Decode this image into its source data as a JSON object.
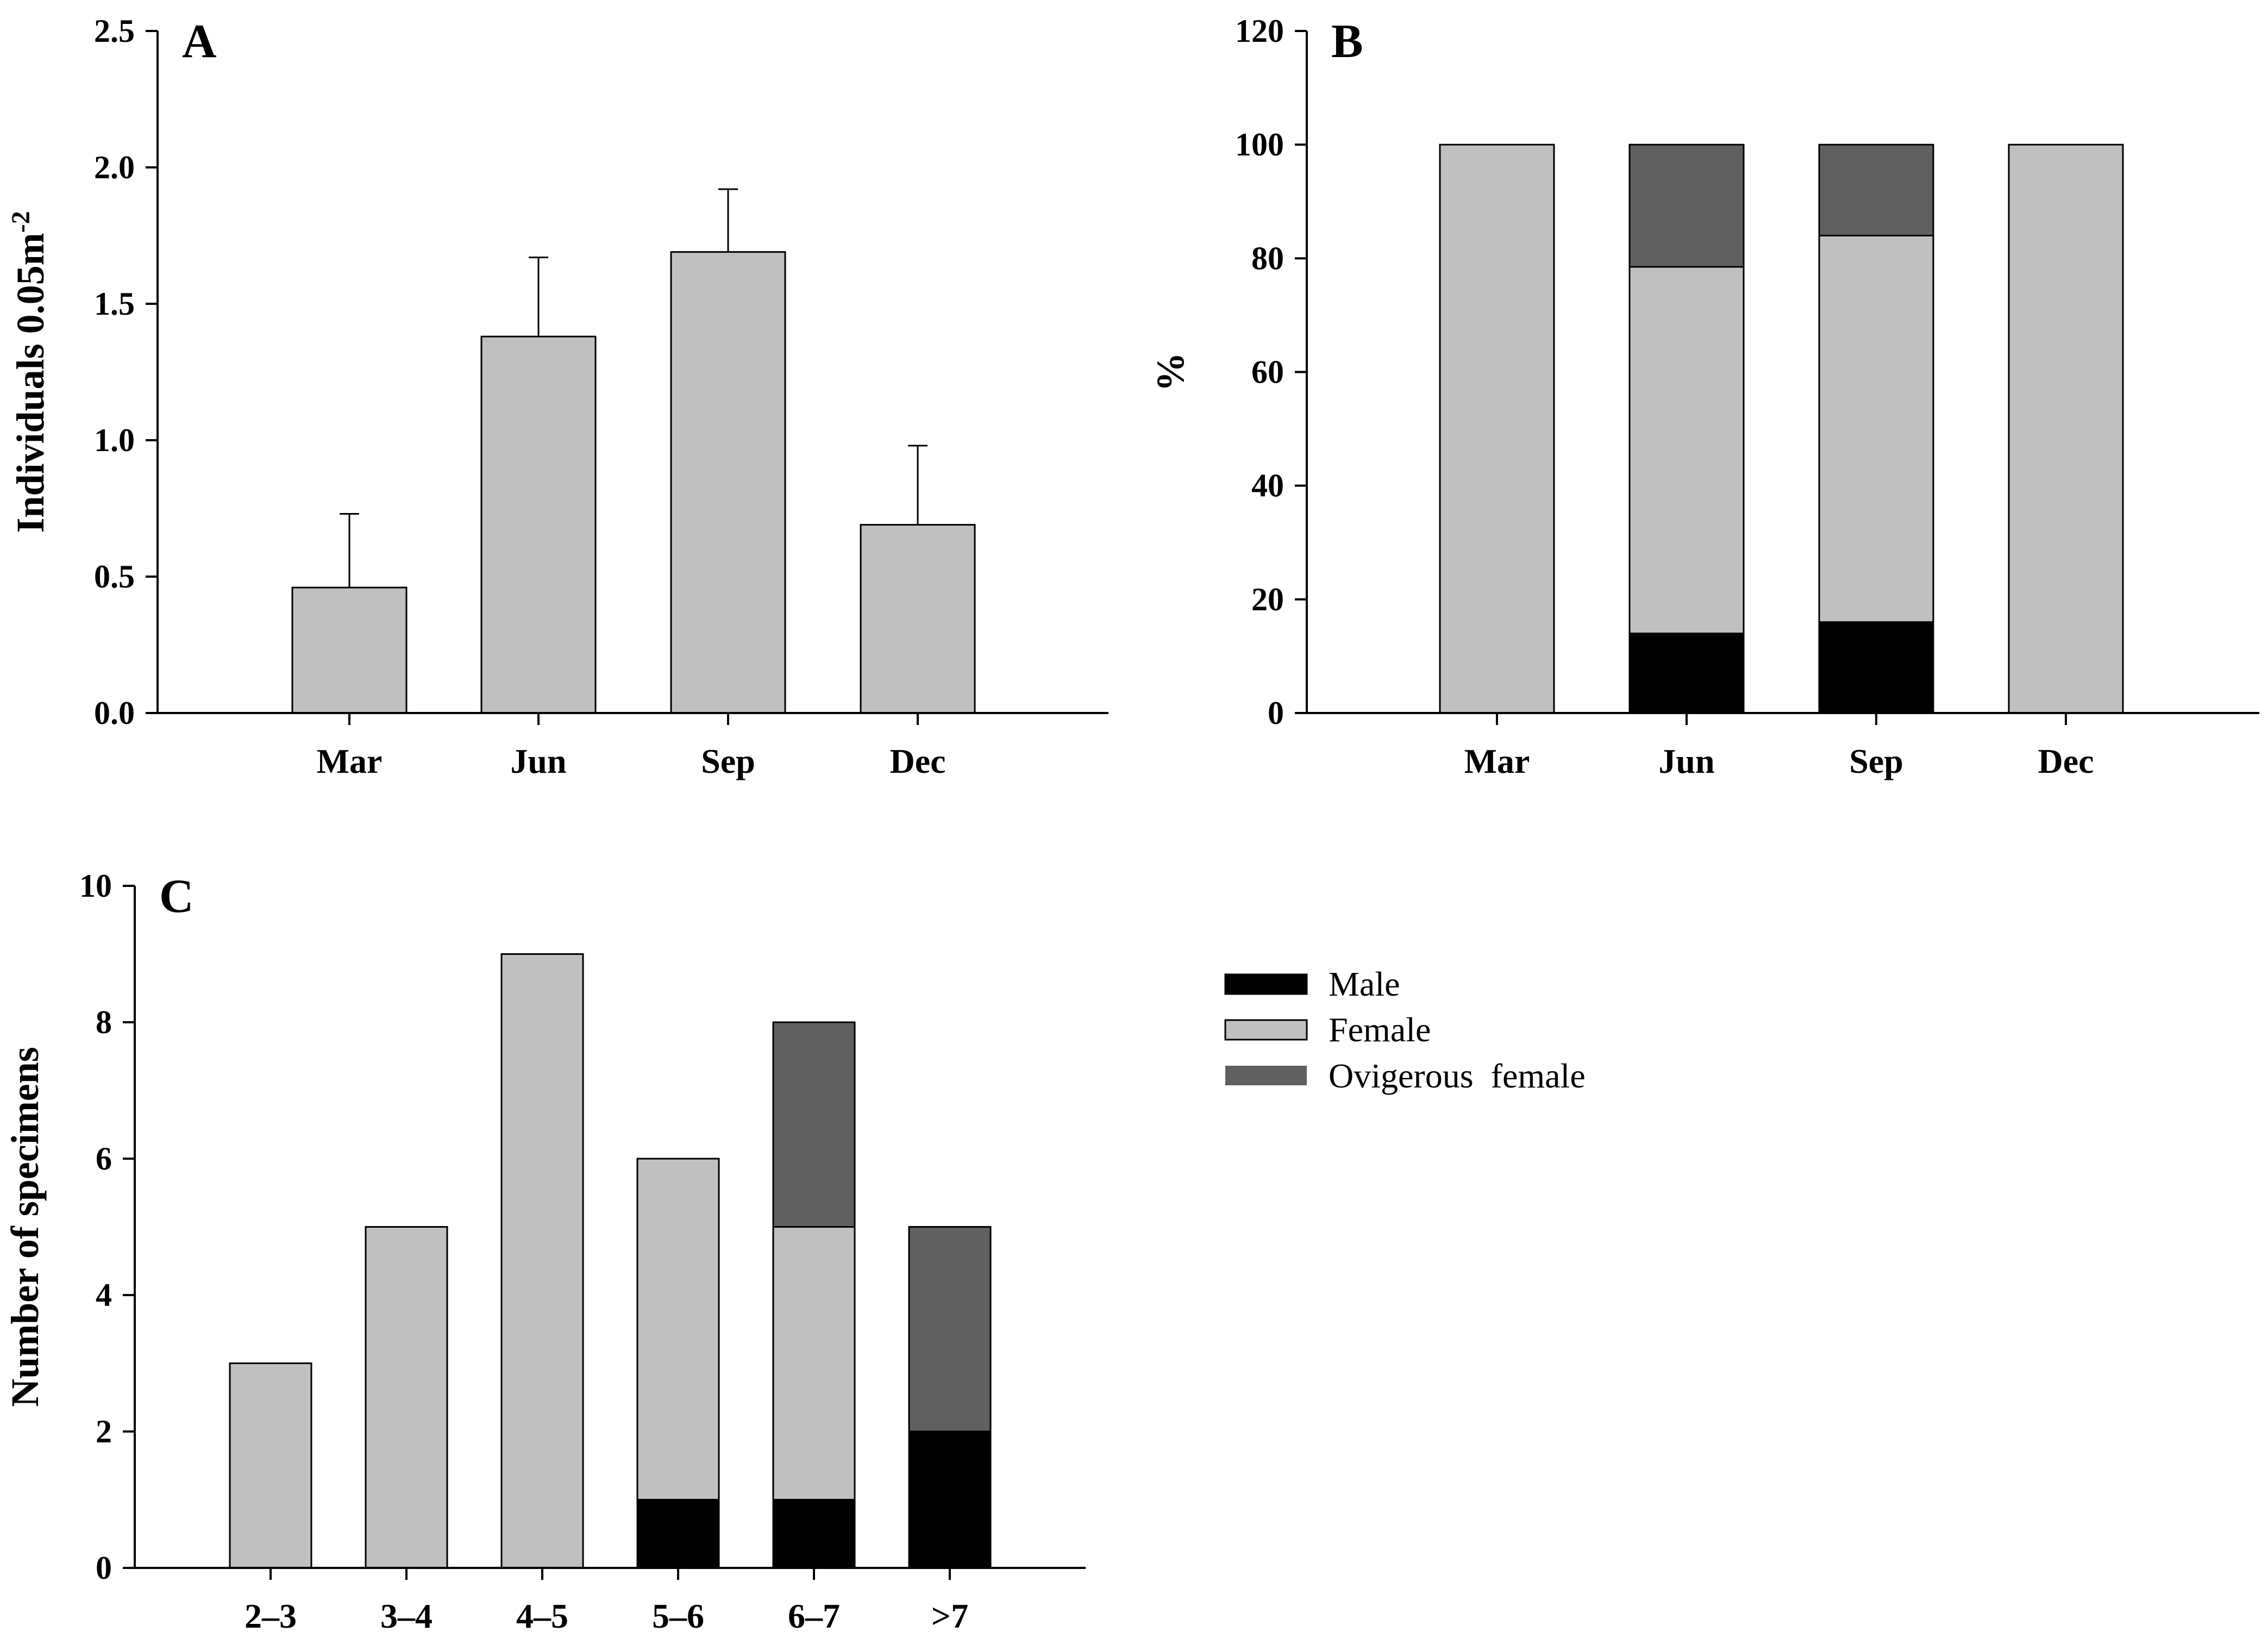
{
  "colors": {
    "male": "#000000",
    "female": "#c0c0c0",
    "ovigerous": "#606060",
    "bar": "#c0c0c0"
  },
  "chart_data": [
    {
      "panel": "A",
      "type": "bar",
      "ylabel": "Individuals 0.05m",
      "ylabel_sup": "-2",
      "categories": [
        "Mar",
        "Jun",
        "Sep",
        "Dec"
      ],
      "values": [
        0.46,
        1.38,
        1.69,
        0.69
      ],
      "error_upper": [
        0.73,
        1.67,
        1.92,
        0.98
      ],
      "ylim": [
        0,
        2.5
      ],
      "yticks": [
        "0.0",
        "0.5",
        "1.0",
        "1.5",
        "2.0",
        "2.5"
      ]
    },
    {
      "panel": "B",
      "type": "bar",
      "stacked": true,
      "ylabel": "%",
      "categories": [
        "Mar",
        "Jun",
        "Sep",
        "Dec"
      ],
      "series": [
        {
          "name": "Male",
          "values": [
            0,
            14,
            16,
            0
          ]
        },
        {
          "name": "Female",
          "values": [
            100,
            64.5,
            68,
            100
          ]
        },
        {
          "name": "Ovigerous female",
          "values": [
            0,
            21.5,
            16,
            0
          ]
        }
      ],
      "ylim": [
        0,
        120
      ],
      "yticks": [
        "0",
        "20",
        "40",
        "60",
        "80",
        "100",
        "120"
      ]
    },
    {
      "panel": "C",
      "type": "bar",
      "stacked": true,
      "ylabel": "Number of specimens",
      "categories": [
        "2–3",
        "3–4",
        "4–5",
        "5–6",
        "6–7",
        ">7"
      ],
      "series": [
        {
          "name": "Male",
          "values": [
            0,
            0,
            0,
            1,
            1,
            2
          ]
        },
        {
          "name": "Female",
          "values": [
            3,
            5,
            9,
            5,
            4,
            0
          ]
        },
        {
          "name": "Ovigerous female",
          "values": [
            0,
            0,
            0,
            0,
            3,
            3
          ]
        }
      ],
      "ylim": [
        0,
        10
      ],
      "yticks": [
        "0",
        "2",
        "4",
        "6",
        "8",
        "10"
      ]
    }
  ],
  "legend": {
    "items": [
      "Male",
      "Female",
      "Ovigerous  female"
    ]
  }
}
